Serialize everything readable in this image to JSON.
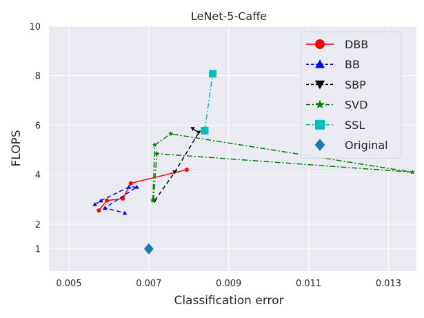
{
  "chart_data": {
    "type": "line",
    "title": "LeNet-5-Caffe",
    "xlabel": "Classification error",
    "ylabel": "FLOPS",
    "xlim": [
      0.0045,
      0.0137
    ],
    "ylim": [
      0.1,
      10
    ],
    "xticks": [
      {
        "value": 0.005,
        "label": "0.005"
      },
      {
        "value": 0.007,
        "label": "0.007"
      },
      {
        "value": 0.009,
        "label": "0.009"
      },
      {
        "value": 0.011,
        "label": "0.011"
      },
      {
        "value": 0.013,
        "label": "0.013"
      }
    ],
    "yticks": [
      {
        "value": 1,
        "label": "1"
      },
      {
        "value": 2,
        "label": "2"
      },
      {
        "value": 4,
        "label": "4"
      },
      {
        "value": 6,
        "label": "6"
      },
      {
        "value": 8,
        "label": "8"
      },
      {
        "value": 10,
        "label": "10"
      }
    ],
    "grid": true,
    "legend_position": "top-right",
    "series": [
      {
        "name": "DBB",
        "color": "#ff0000",
        "marker": "circle",
        "line_style": "solid",
        "points": [
          [
            0.00575,
            2.55
          ],
          [
            0.00595,
            2.95
          ],
          [
            0.00635,
            3.03
          ],
          [
            0.00655,
            3.65
          ],
          [
            0.00795,
            4.2
          ]
        ]
      },
      {
        "name": "BB",
        "color": "#0000ff",
        "marker": "triangle-up",
        "line_style": "dashed",
        "points": [
          [
            0.00565,
            2.8
          ],
          [
            0.0058,
            2.95
          ],
          [
            0.0065,
            3.5
          ],
          [
            0.0067,
            3.5
          ],
          [
            0.0059,
            2.65
          ],
          [
            0.0064,
            2.45
          ]
        ]
      },
      {
        "name": "SBP",
        "color": "#000000",
        "marker": "triangle-down",
        "line_style": "dashed",
        "points": [
          [
            0.00715,
            2.95
          ],
          [
            0.00765,
            4.1
          ],
          [
            0.00825,
            5.7
          ],
          [
            0.0081,
            5.85
          ]
        ]
      },
      {
        "name": "SVD",
        "color": "#008000",
        "marker": "star",
        "line_style": "dashdot",
        "points": [
          [
            0.0071,
            2.95
          ],
          [
            0.00715,
            5.2
          ],
          [
            0.00755,
            5.65
          ],
          [
            0.0136,
            4.1
          ],
          [
            0.0072,
            4.85
          ],
          [
            0.00712,
            3.0
          ]
        ]
      },
      {
        "name": "SSL",
        "color": "#00bfbf",
        "marker": "square",
        "line_style": "dashdot",
        "points": [
          [
            0.0084,
            5.78
          ],
          [
            0.0086,
            8.08
          ]
        ]
      },
      {
        "name": "Original",
        "color": "#1f77b4",
        "marker": "diamond",
        "line_style": "none",
        "points": [
          [
            0.007,
            1.0
          ]
        ]
      }
    ]
  }
}
